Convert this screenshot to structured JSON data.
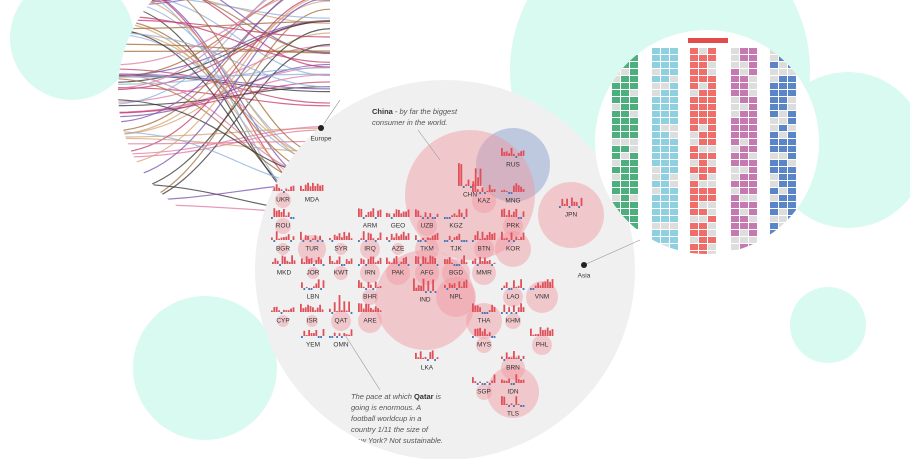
{
  "labels": {
    "europe": "Europe",
    "asia": "Asia"
  },
  "china_note": [
    "China",
    " - by far the biggest",
    "consumer in the world."
  ],
  "qatar_note": [
    "The pace at which ",
    "Qatar",
    " is",
    "going is enormous. A",
    "football worldcup in a",
    "country 1/11 the size of",
    "New York? Not sustainable."
  ],
  "countries": [
    "UKR",
    "MDA",
    "ROU",
    "BGR",
    "TUR",
    "SYR",
    "MKD",
    "JOR",
    "KWT",
    "LBN",
    "BHR",
    "CYP",
    "ISR",
    "QAT",
    "ARE",
    "YEM",
    "OMN",
    "ARM",
    "GEO",
    "UZB",
    "KGZ",
    "AZE",
    "IRQ",
    "TKM",
    "TJK",
    "IRN",
    "PAK",
    "AFG",
    "BGD",
    "MMR",
    "NPL",
    "IND",
    "LKA",
    "RUS",
    "KAZ",
    "MNG",
    "CHN",
    "PRK",
    "KOR",
    "BTN",
    "JPN",
    "LAO",
    "VNM",
    "THA",
    "KHM",
    "MYS",
    "PHL",
    "BRN",
    "IDN",
    "SGP",
    "TLS"
  ]
}
